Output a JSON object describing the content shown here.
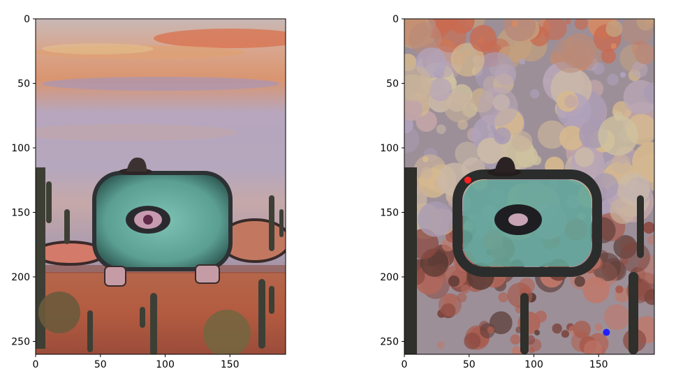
{
  "chart_data": [
    {
      "type": "image",
      "title": "",
      "xlabel": "",
      "ylabel": "",
      "xlim": [
        0,
        193
      ],
      "ylim": [
        260,
        0
      ],
      "x_ticks": [
        0,
        50,
        100,
        150
      ],
      "y_ticks": [
        0,
        50,
        100,
        150,
        200,
        250
      ],
      "image": "painted desert scene with green one-eyed creature wearing a hat, cacti and sunset sky"
    },
    {
      "type": "image",
      "title": "",
      "xlabel": "",
      "ylabel": "",
      "xlim": [
        0,
        193
      ],
      "ylim": [
        260,
        0
      ],
      "x_ticks": [
        0,
        50,
        100,
        150
      ],
      "y_ticks": [
        0,
        50,
        100,
        150,
        200,
        250
      ],
      "image": "circle-mosaic approximation of the same scene",
      "markers": [
        {
          "x": 49,
          "y": 125,
          "color": "#ff2020"
        },
        {
          "x": 156,
          "y": 243,
          "color": "#2020ff"
        }
      ]
    }
  ],
  "colors": {
    "frame": "#000000",
    "sky_top": "#c9b8b0",
    "sky_purple": "#a99ab5",
    "sunset_orange": "#d98b5e",
    "ground": "#b55f45",
    "creature": "#5fa89b",
    "cactus": "#3a3a34"
  }
}
